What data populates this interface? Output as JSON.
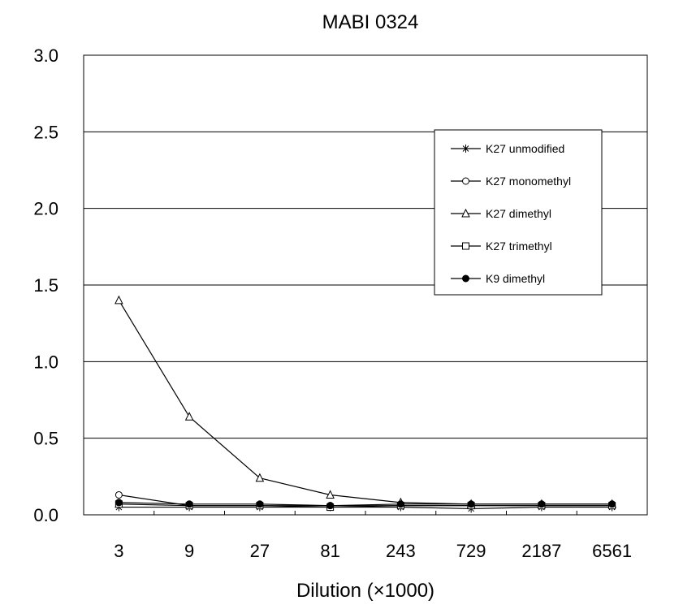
{
  "chart_data": {
    "type": "line",
    "title": "MABI 0324",
    "xlabel": "Dilution (×1000)",
    "ylabel": "",
    "categories": [
      "3",
      "9",
      "27",
      "81",
      "243",
      "729",
      "2187",
      "6561"
    ],
    "ylim": [
      0,
      3.0
    ],
    "yticks": [
      "0.0",
      "0.5",
      "1.0",
      "1.5",
      "2.0",
      "2.5",
      "3.0"
    ],
    "grid": true,
    "legend_position": "top-right",
    "series": [
      {
        "name": "K27 unmodified",
        "marker": "asterisk",
        "values": [
          0.05,
          0.05,
          0.05,
          0.05,
          0.05,
          0.04,
          0.05,
          0.05
        ]
      },
      {
        "name": "K27 monomethyl",
        "marker": "circle-open",
        "values": [
          0.13,
          0.06,
          0.06,
          0.06,
          0.06,
          0.06,
          0.06,
          0.06
        ]
      },
      {
        "name": "K27 dimethyl",
        "marker": "triangle-open",
        "values": [
          1.4,
          0.64,
          0.24,
          0.13,
          0.08,
          0.07,
          0.07,
          0.07
        ]
      },
      {
        "name": "K27 trimethyl",
        "marker": "square-open",
        "values": [
          0.07,
          0.06,
          0.06,
          0.05,
          0.06,
          0.06,
          0.06,
          0.06
        ]
      },
      {
        "name": "K9 dimethyl",
        "marker": "circle-filled",
        "values": [
          0.08,
          0.07,
          0.07,
          0.06,
          0.07,
          0.07,
          0.07,
          0.07
        ]
      }
    ]
  }
}
